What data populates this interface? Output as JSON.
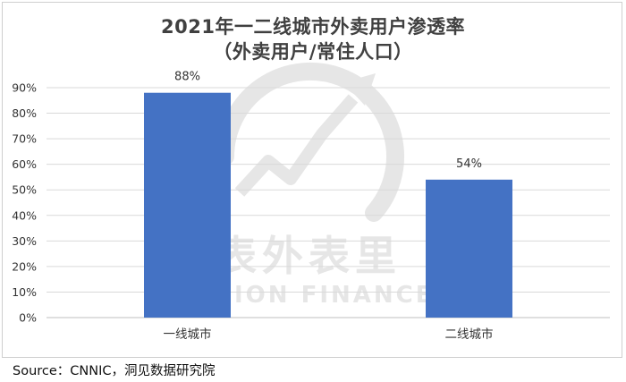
{
  "title": "2021年一二线城市外卖用户渗透率",
  "subtitle": "（外卖用户/常住人口）",
  "source": "Source：CNNIC，洞见数据研究院",
  "watermark": {
    "brand_cn": "表外表里",
    "brand_en": "VISION FINANCE"
  },
  "colors": {
    "bar": "#4472c4",
    "gridline": "#d9d9d9",
    "axis": "#bfbfbf",
    "watermark": "#e6e6e6"
  },
  "chart_data": {
    "type": "bar",
    "title": "2021年一二线城市外卖用户渗透率",
    "subtitle": "（外卖用户/常住人口）",
    "categories": [
      "一线城市",
      "二线城市"
    ],
    "values": [
      88,
      54
    ],
    "data_labels": [
      "88%",
      "54%"
    ],
    "ylim": [
      0,
      90
    ],
    "yticks": [
      0,
      10,
      20,
      30,
      40,
      50,
      60,
      70,
      80,
      90
    ],
    "ytick_labels": [
      "0%",
      "10%",
      "20%",
      "30%",
      "40%",
      "50%",
      "60%",
      "70%",
      "80%",
      "90%"
    ],
    "grid": true,
    "legend": "none"
  }
}
